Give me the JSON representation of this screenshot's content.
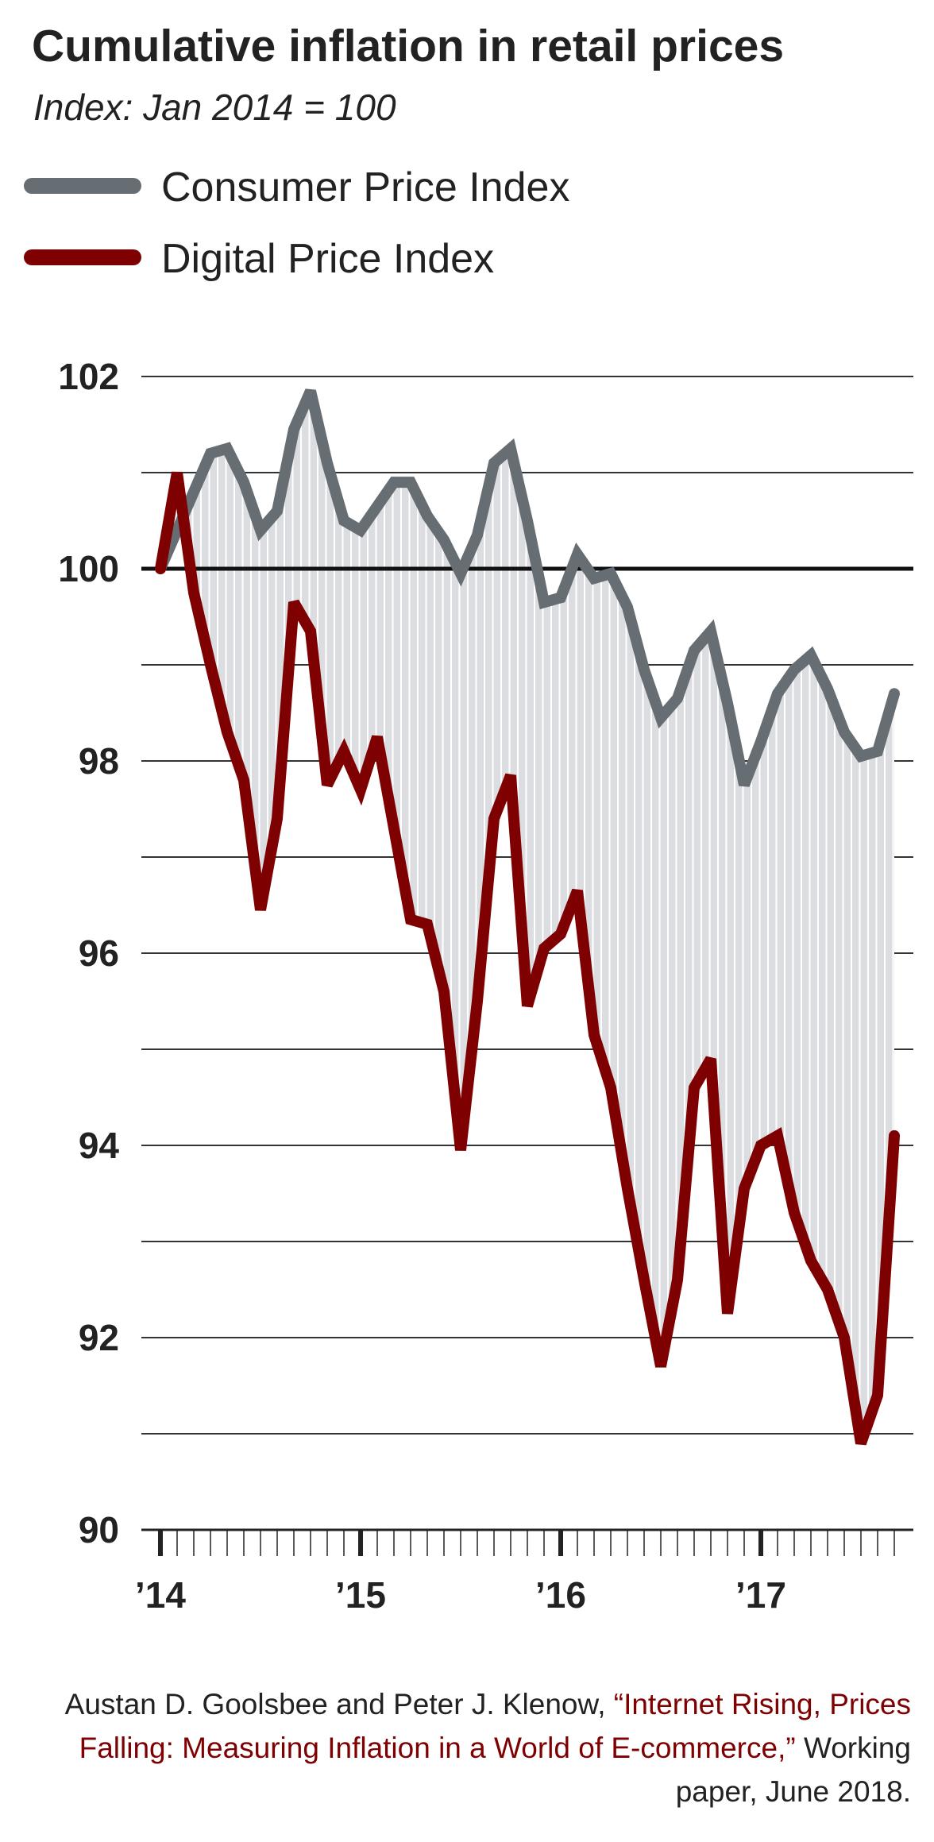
{
  "chart_data": {
    "type": "line",
    "title": "Cumulative inflation in retail prices",
    "subtitle": "Index: Jan 2014 = 100",
    "x_ticks": [
      "’14",
      "’15",
      "’16",
      "’17"
    ],
    "x_range": [
      "2014-01",
      "2017-09"
    ],
    "ylim": [
      90,
      102
    ],
    "y_ticks": [
      90,
      92,
      94,
      96,
      98,
      100,
      102
    ],
    "grid": true,
    "reference_line": 100,
    "legend_placement": "top-left",
    "shaded_between_series": true,
    "series": [
      {
        "name": "Consumer Price Index",
        "color": "#666d73",
        "values": [
          100,
          100.4,
          100.8,
          101.2,
          101.25,
          100.9,
          100.4,
          100.6,
          101.45,
          101.85,
          101.1,
          100.5,
          100.4,
          100.65,
          100.9,
          100.9,
          100.55,
          100.3,
          99.95,
          100.35,
          101.1,
          101.25,
          100.5,
          99.65,
          99.7,
          100.15,
          99.9,
          99.95,
          99.6,
          98.95,
          98.45,
          98.65,
          99.15,
          99.35,
          98.6,
          97.75,
          98.2,
          98.7,
          98.95,
          99.1,
          98.75,
          98.3,
          98.05,
          98.1,
          98.7
        ]
      },
      {
        "name": "Digital Price Index",
        "color": "#7f0000",
        "values": [
          100,
          101.0,
          99.75,
          99.0,
          98.3,
          97.8,
          96.45,
          97.4,
          99.65,
          99.35,
          97.75,
          98.1,
          97.7,
          98.25,
          97.3,
          96.35,
          96.3,
          95.6,
          93.95,
          95.5,
          97.4,
          97.85,
          95.45,
          96.05,
          96.2,
          96.65,
          95.15,
          94.6,
          93.55,
          92.6,
          91.7,
          92.6,
          94.6,
          94.9,
          92.25,
          93.55,
          94.0,
          94.1,
          93.3,
          92.8,
          92.5,
          92.0,
          90.9,
          91.4,
          94.1
        ]
      }
    ]
  },
  "footer": {
    "authors": "Austan D. Goolsbee and Peter J. Klenow, ",
    "paper_title": "“Internet Rising, Prices Falling: Measuring Inflation in a World of E-commerce,”",
    "rest": " Working paper, June 2018."
  }
}
